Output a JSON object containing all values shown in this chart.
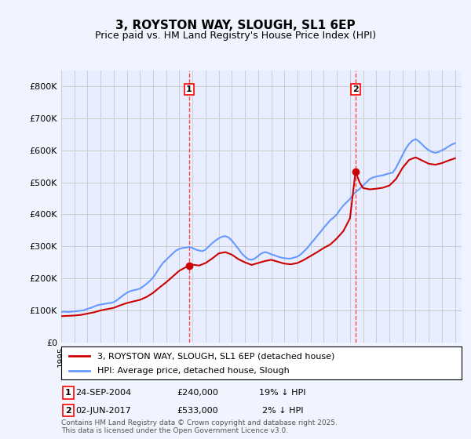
{
  "title": "3, ROYSTON WAY, SLOUGH, SL1 6EP",
  "subtitle": "Price paid vs. HM Land Registry's House Price Index (HPI)",
  "hpi_label": "HPI: Average price, detached house, Slough",
  "property_label": "3, ROYSTON WAY, SLOUGH, SL1 6EP (detached house)",
  "footer": "Contains HM Land Registry data © Crown copyright and database right 2025.\nThis data is licensed under the Open Government Licence v3.0.",
  "sale1_date": "24-SEP-2004",
  "sale1_price": 240000,
  "sale1_note": "19% ↓ HPI",
  "sale2_date": "02-JUN-2017",
  "sale2_price": 533000,
  "sale2_note": "2% ↓ HPI",
  "sale1_x": 2004.73,
  "sale2_x": 2017.42,
  "ylim": [
    0,
    850000
  ],
  "xlim_start": 1995,
  "xlim_end": 2025.5,
  "background_color": "#f0f4ff",
  "plot_bg": "#e8eeff",
  "hpi_color": "#6699ff",
  "property_color": "#cc0000",
  "dashed_color": "#ff4444",
  "grid_color": "#cccccc",
  "hpi_data_x": [
    1995,
    1995.25,
    1995.5,
    1995.75,
    1996,
    1996.25,
    1996.5,
    1996.75,
    1997,
    1997.25,
    1997.5,
    1997.75,
    1998,
    1998.25,
    1998.5,
    1998.75,
    1999,
    1999.25,
    1999.5,
    1999.75,
    2000,
    2000.25,
    2000.5,
    2000.75,
    2001,
    2001.25,
    2001.5,
    2001.75,
    2002,
    2002.25,
    2002.5,
    2002.75,
    2003,
    2003.25,
    2003.5,
    2003.75,
    2004,
    2004.25,
    2004.5,
    2004.75,
    2005,
    2005.25,
    2005.5,
    2005.75,
    2006,
    2006.25,
    2006.5,
    2006.75,
    2007,
    2007.25,
    2007.5,
    2007.75,
    2008,
    2008.25,
    2008.5,
    2008.75,
    2009,
    2009.25,
    2009.5,
    2009.75,
    2010,
    2010.25,
    2010.5,
    2010.75,
    2011,
    2011.25,
    2011.5,
    2011.75,
    2012,
    2012.25,
    2012.5,
    2012.75,
    2013,
    2013.25,
    2013.5,
    2013.75,
    2014,
    2014.25,
    2014.5,
    2014.75,
    2015,
    2015.25,
    2015.5,
    2015.75,
    2016,
    2016.25,
    2016.5,
    2016.75,
    2017,
    2017.25,
    2017.5,
    2017.75,
    2018,
    2018.25,
    2018.5,
    2018.75,
    2019,
    2019.25,
    2019.5,
    2019.75,
    2020,
    2020.25,
    2020.5,
    2020.75,
    2021,
    2021.25,
    2021.5,
    2021.75,
    2022,
    2022.25,
    2022.5,
    2022.75,
    2023,
    2023.25,
    2023.5,
    2023.75,
    2024,
    2024.25,
    2024.5,
    2024.75,
    2025
  ],
  "hpi_data_y": [
    95000,
    96000,
    95000,
    96000,
    97000,
    98000,
    99000,
    101000,
    105000,
    108000,
    112000,
    116000,
    118000,
    120000,
    122000,
    123000,
    126000,
    132000,
    140000,
    148000,
    155000,
    160000,
    163000,
    165000,
    168000,
    175000,
    183000,
    192000,
    203000,
    218000,
    234000,
    248000,
    258000,
    268000,
    278000,
    287000,
    292000,
    295000,
    296000,
    298000,
    295000,
    290000,
    287000,
    285000,
    290000,
    300000,
    310000,
    318000,
    325000,
    330000,
    332000,
    328000,
    318000,
    305000,
    292000,
    278000,
    268000,
    260000,
    258000,
    262000,
    270000,
    278000,
    282000,
    280000,
    275000,
    272000,
    268000,
    265000,
    263000,
    262000,
    262000,
    265000,
    268000,
    275000,
    285000,
    295000,
    308000,
    320000,
    333000,
    345000,
    358000,
    370000,
    382000,
    390000,
    400000,
    415000,
    428000,
    438000,
    448000,
    462000,
    472000,
    480000,
    490000,
    500000,
    510000,
    515000,
    518000,
    520000,
    522000,
    525000,
    528000,
    530000,
    545000,
    565000,
    585000,
    605000,
    620000,
    630000,
    635000,
    628000,
    618000,
    608000,
    600000,
    595000,
    592000,
    595000,
    600000,
    605000,
    612000,
    618000,
    622000
  ],
  "property_data_x": [
    1995.0,
    1995.5,
    1996.0,
    1996.5,
    1997.0,
    1997.5,
    1998.0,
    1998.5,
    1999.0,
    1999.5,
    2000.0,
    2000.5,
    2001.0,
    2001.5,
    2002.0,
    2002.5,
    2003.0,
    2003.5,
    2004.0,
    2004.73,
    2005.0,
    2005.5,
    2006.0,
    2006.5,
    2007.0,
    2007.5,
    2008.0,
    2008.5,
    2009.0,
    2009.5,
    2010.0,
    2010.5,
    2011.0,
    2011.5,
    2012.0,
    2012.5,
    2013.0,
    2013.5,
    2014.0,
    2014.5,
    2015.0,
    2015.5,
    2016.0,
    2016.5,
    2017.0,
    2017.42,
    2017.75,
    2018.0,
    2018.5,
    2019.0,
    2019.5,
    2020.0,
    2020.5,
    2021.0,
    2021.5,
    2022.0,
    2022.5,
    2023.0,
    2023.5,
    2024.0,
    2024.5,
    2025.0
  ],
  "property_data_y": [
    82000,
    83000,
    84000,
    86000,
    90000,
    94000,
    100000,
    104000,
    108000,
    116000,
    123000,
    128000,
    133000,
    142000,
    155000,
    172000,
    188000,
    206000,
    224000,
    240000,
    243000,
    240000,
    248000,
    262000,
    278000,
    282000,
    274000,
    260000,
    250000,
    242000,
    248000,
    254000,
    258000,
    252000,
    246000,
    244000,
    248000,
    258000,
    270000,
    282000,
    295000,
    306000,
    325000,
    348000,
    388000,
    533000,
    498000,
    482000,
    478000,
    480000,
    483000,
    490000,
    510000,
    545000,
    570000,
    578000,
    568000,
    558000,
    555000,
    560000,
    568000,
    575000
  ]
}
